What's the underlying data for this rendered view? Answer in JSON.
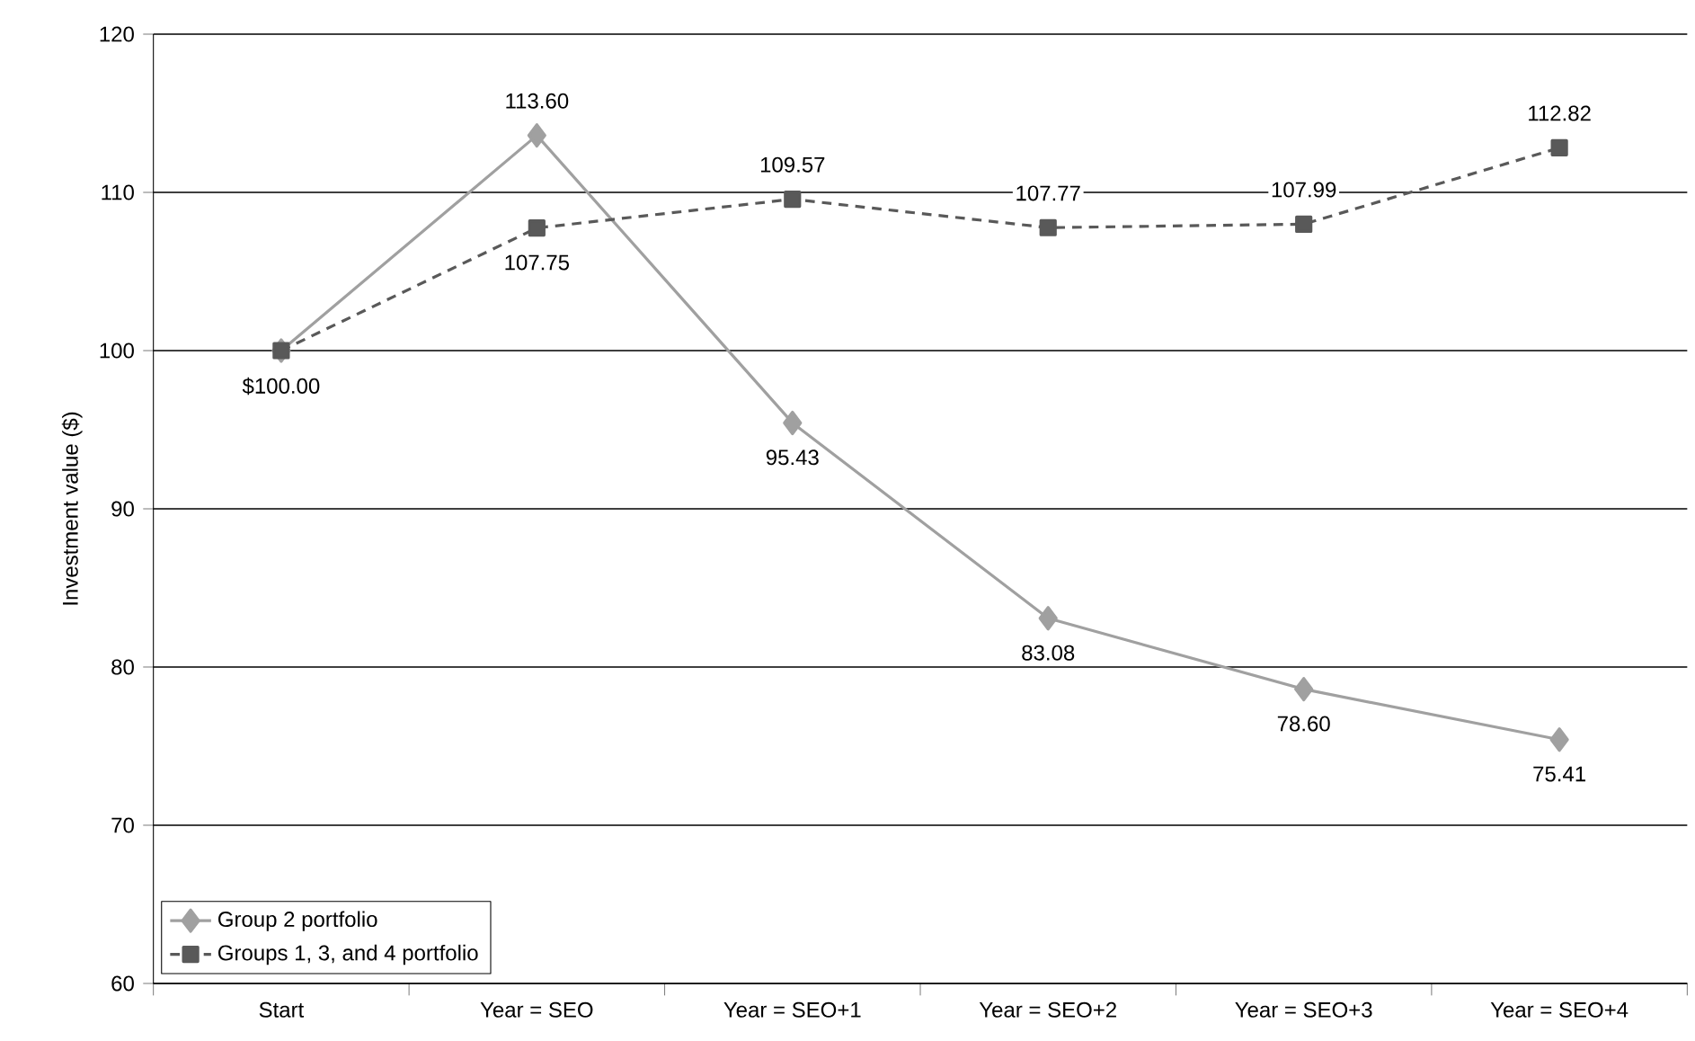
{
  "chart_data": {
    "type": "line",
    "ylabel": "Investment value ($)",
    "categories": [
      "Start",
      "Year = SEO",
      "Year = SEO+1",
      "Year = SEO+2",
      "Year = SEO+3",
      "Year = SEO+4"
    ],
    "series": [
      {
        "name": "Group 2 portfolio",
        "color": "#a0a0a0",
        "marker": "diamond",
        "line_style": "solid",
        "values": [
          100,
          113.6,
          95.43,
          83.08,
          78.6,
          75.41
        ],
        "value_labels": [
          "$100.00",
          "113.60",
          "95.43",
          "83.08",
          "78.60",
          "75.41"
        ]
      },
      {
        "name": "Groups 1, 3, and 4 portfolio",
        "color": "#595959",
        "marker": "square",
        "line_style": "dashed",
        "values": [
          100,
          107.75,
          109.57,
          107.77,
          107.99,
          112.82
        ],
        "value_labels": [
          null,
          "107.75",
          "109.57",
          "107.77",
          "107.99",
          "112.82"
        ]
      }
    ],
    "ylim": [
      60,
      120
    ],
    "yticks": [
      60,
      70,
      80,
      90,
      100,
      110,
      120
    ],
    "grid": "y",
    "legend": "bottom left"
  }
}
